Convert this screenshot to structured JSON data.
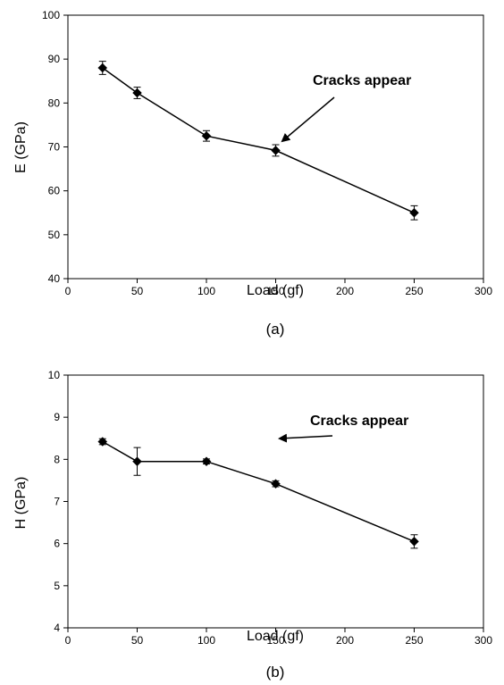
{
  "chart_data": [
    {
      "type": "line",
      "panel_label": "(a)",
      "xlabel": "Load (gf)",
      "ylabel": "E (GPa)",
      "xlim": [
        0,
        300
      ],
      "ylim": [
        40,
        100
      ],
      "xticks": [
        0,
        50,
        100,
        150,
        200,
        250,
        300
      ],
      "yticks": [
        40,
        50,
        60,
        70,
        80,
        90,
        100
      ],
      "grid": false,
      "marker": "diamond",
      "series": [
        {
          "x": [
            25,
            50,
            100,
            150,
            250
          ],
          "y": [
            88,
            82.3,
            72.5,
            69.2,
            55
          ],
          "error": [
            1.5,
            1.3,
            1.2,
            1.3,
            1.6
          ]
        }
      ],
      "annotation": {
        "text": "Cracks appear",
        "x": 150,
        "y": 69.2
      }
    },
    {
      "type": "line",
      "panel_label": "(b)",
      "xlabel": "Load (gf)",
      "ylabel": "H (GPa)",
      "xlim": [
        0,
        300
      ],
      "ylim": [
        4,
        10
      ],
      "xticks": [
        0,
        50,
        100,
        150,
        200,
        250,
        300
      ],
      "yticks": [
        4,
        5,
        6,
        7,
        8,
        9,
        10
      ],
      "grid": false,
      "marker": "diamond",
      "series": [
        {
          "x": [
            25,
            50,
            100,
            150,
            250
          ],
          "y": [
            8.42,
            7.95,
            7.95,
            7.42,
            6.05
          ],
          "error": [
            0.07,
            0.33,
            0.06,
            0.07,
            0.16
          ]
        }
      ],
      "annotation": {
        "text": "Cracks appear",
        "x": 150,
        "y": 7.42
      }
    }
  ]
}
